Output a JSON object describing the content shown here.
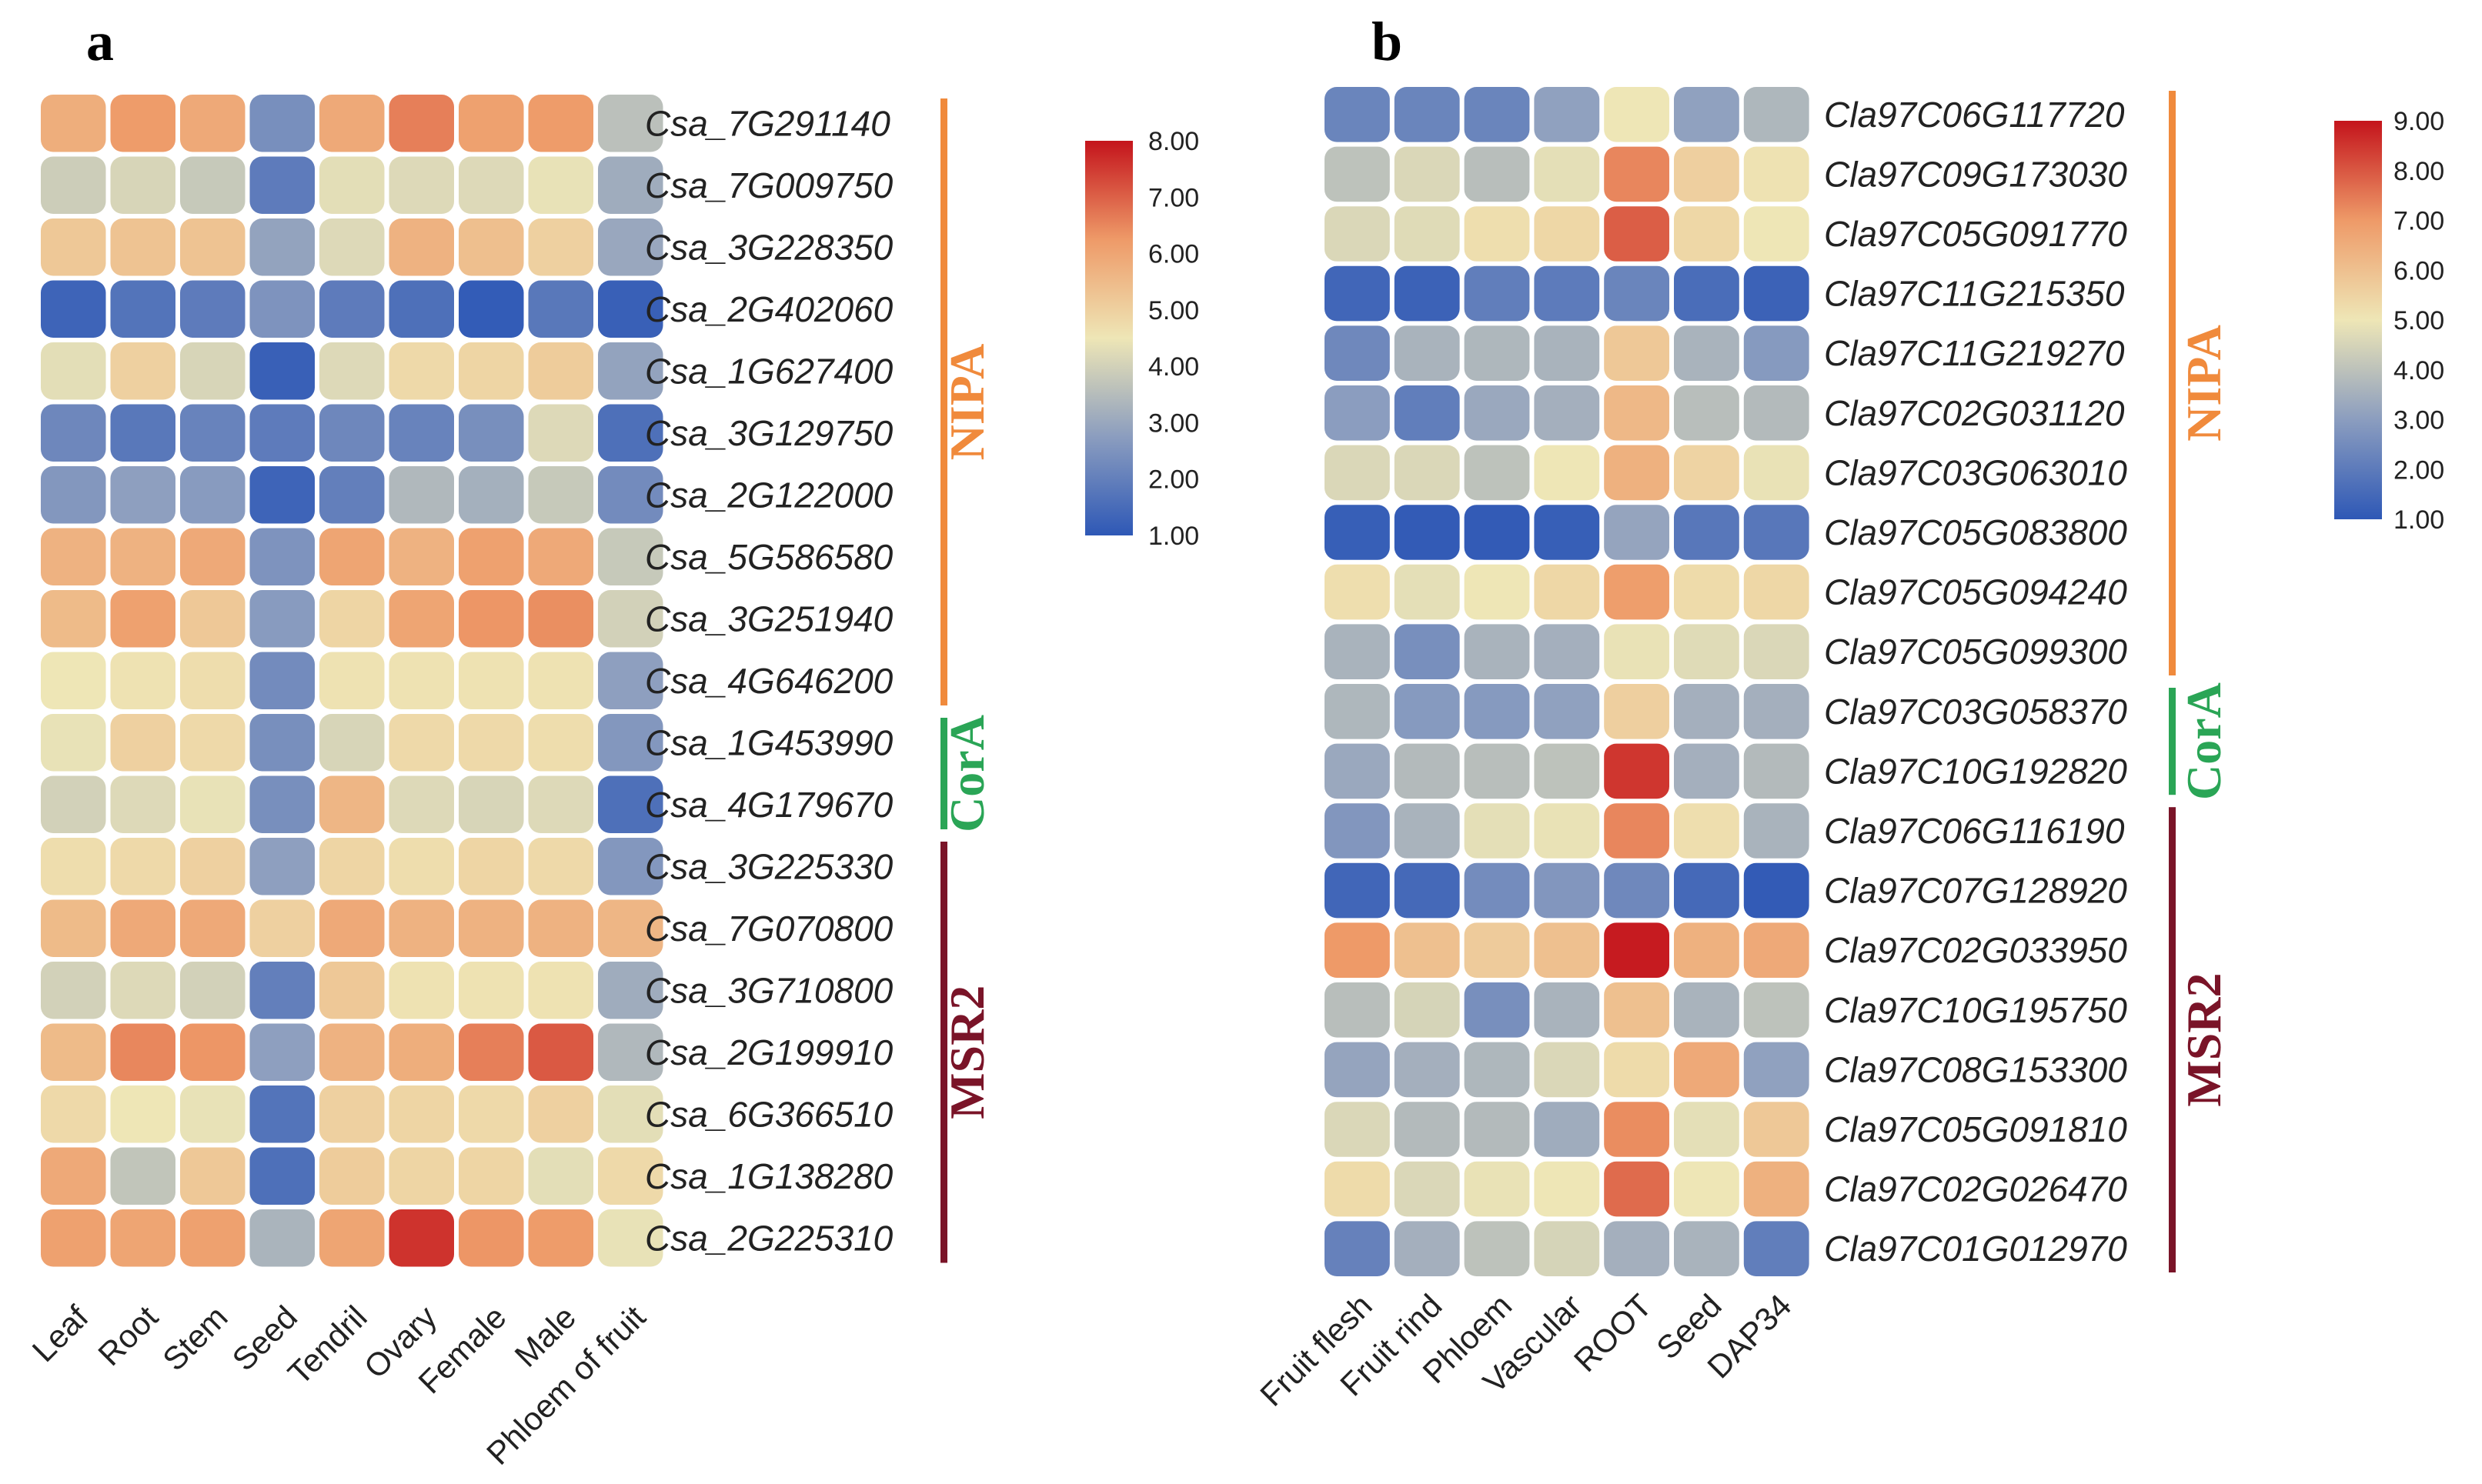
{
  "chart_data": [
    {
      "type": "heatmap",
      "panel": "a",
      "columns": [
        "Leaf",
        "Root",
        "Stem",
        "Seed",
        "Tendril",
        "Ovary",
        "Female",
        "Male",
        "Phloem of fruit"
      ],
      "rows": [
        "Csa_7G291140",
        "Csa_7G009750",
        "Csa_3G228350",
        "Csa_2G402060",
        "Csa_1G627400",
        "Csa_3G129750",
        "Csa_2G122000",
        "Csa_5G586580",
        "Csa_3G251940",
        "Csa_4G646200",
        "Csa_1G453990",
        "Csa_4G179670",
        "Csa_3G225330",
        "Csa_7G070800",
        "Csa_3G710800",
        "Csa_2G199910",
        "Csa_6G366510",
        "Csa_1G138280",
        "Csa_2G225310"
      ],
      "values": [
        [
          5.8,
          6.2,
          5.9,
          2.4,
          5.9,
          6.6,
          6.1,
          6.2,
          3.6
        ],
        [
          3.9,
          4.1,
          3.8,
          1.9,
          4.3,
          4.2,
          4.2,
          4.4,
          3.1
        ],
        [
          5.2,
          5.3,
          5.3,
          2.9,
          4.2,
          5.7,
          5.4,
          5.0,
          3.0
        ],
        [
          1.3,
          1.7,
          1.9,
          2.5,
          1.9,
          1.6,
          1.1,
          1.8,
          1.2
        ],
        [
          4.3,
          5.0,
          4.1,
          1.2,
          4.2,
          4.8,
          4.9,
          5.1,
          2.9
        ],
        [
          2.2,
          1.8,
          2.1,
          1.9,
          2.2,
          2.1,
          2.4,
          4.2,
          1.6
        ],
        [
          2.6,
          2.8,
          2.7,
          1.3,
          2.0,
          3.4,
          3.2,
          3.8,
          2.3
        ],
        [
          5.7,
          5.7,
          5.9,
          2.5,
          6.0,
          5.7,
          6.1,
          5.9,
          3.8
        ],
        [
          5.5,
          6.1,
          5.2,
          2.7,
          4.9,
          6.0,
          6.3,
          6.4,
          4.0
        ],
        [
          4.5,
          4.6,
          4.7,
          2.3,
          4.6,
          4.6,
          4.6,
          4.6,
          2.8
        ],
        [
          4.4,
          5.0,
          4.8,
          2.4,
          4.1,
          4.8,
          4.8,
          4.7,
          2.6
        ],
        [
          4.0,
          4.2,
          4.4,
          2.4,
          5.6,
          4.2,
          4.1,
          4.2,
          1.6
        ],
        [
          4.7,
          4.8,
          5.0,
          2.8,
          4.9,
          4.7,
          4.9,
          4.8,
          2.6
        ],
        [
          5.5,
          5.9,
          5.9,
          5.0,
          5.9,
          5.7,
          5.7,
          5.7,
          5.6
        ],
        [
          4.0,
          4.2,
          4.0,
          2.0,
          5.2,
          4.6,
          4.6,
          4.6,
          3.1
        ],
        [
          5.5,
          6.5,
          6.3,
          2.8,
          5.7,
          5.8,
          6.6,
          7.1,
          3.4
        ],
        [
          4.8,
          4.5,
          4.4,
          1.7,
          5.0,
          4.9,
          4.8,
          5.0,
          4.3
        ],
        [
          5.9,
          3.7,
          5.2,
          1.6,
          5.1,
          4.9,
          4.9,
          4.3,
          4.8
        ],
        [
          6.1,
          6.0,
          6.1,
          3.3,
          6.0,
          7.6,
          6.3,
          6.2,
          4.4
        ]
      ],
      "groups": [
        {
          "name": "NIPA",
          "color": "#f08a3c"
        },
        {
          "name": "CorA",
          "color": "#2aa556"
        },
        {
          "name": "MSR2",
          "color": "#7a1428"
        }
      ],
      "colorbar": {
        "min": 1.0,
        "max": 8.0,
        "ticks": [
          "8.00",
          "7.00",
          "6.00",
          "5.00",
          "4.00",
          "3.00",
          "2.00",
          "1.00"
        ]
      }
    },
    {
      "type": "heatmap",
      "panel": "b",
      "columns": [
        "Fruit flesh",
        "Fruit rind",
        "Phloem",
        "Vascular",
        "ROOT",
        "Seed",
        "DAP34"
      ],
      "rows": [
        "Cla97C06G117720",
        "Cla97C09G173030",
        "Cla97C05G091770",
        "Cla97C11G215350",
        "Cla97C11G219270",
        "Cla97C02G031120",
        "Cla97C03G063010",
        "Cla97C05G083800",
        "Cla97C05G094240",
        "Cla97C05G099300",
        "Cla97C03G058370",
        "Cla97C10G192820",
        "Cla97C06G116190",
        "Cla97C07G128920",
        "Cla97C02G033950",
        "Cla97C10G195750",
        "Cla97C08G153300",
        "Cla97C05G091810",
        "Cla97C02G026470",
        "Cla97C01G012970"
      ],
      "values": [
        [
          2.3,
          2.3,
          2.3,
          3.1,
          5.0,
          3.1,
          3.7
        ],
        [
          4.0,
          4.6,
          3.9,
          4.8,
          7.3,
          5.6,
          5.1
        ],
        [
          4.6,
          4.7,
          5.2,
          5.4,
          7.9,
          5.4,
          5.0
        ],
        [
          1.4,
          1.3,
          2.1,
          2.0,
          2.3,
          1.6,
          1.3
        ],
        [
          2.4,
          3.6,
          3.7,
          3.6,
          5.8,
          3.6,
          2.9
        ],
        [
          3.0,
          2.1,
          3.3,
          3.5,
          6.2,
          3.9,
          3.8
        ],
        [
          4.6,
          4.6,
          4.0,
          5.0,
          6.4,
          5.5,
          4.9
        ],
        [
          1.2,
          1.1,
          1.1,
          1.2,
          3.2,
          1.9,
          1.9
        ],
        [
          5.2,
          4.8,
          5.0,
          5.4,
          6.9,
          5.3,
          5.4
        ],
        [
          3.6,
          2.6,
          3.6,
          3.5,
          4.9,
          4.7,
          4.6
        ],
        [
          3.7,
          2.9,
          2.9,
          3.1,
          5.6,
          3.5,
          3.5
        ],
        [
          3.3,
          3.8,
          3.9,
          4.0,
          8.5,
          3.5,
          3.8
        ],
        [
          2.8,
          3.6,
          4.8,
          4.9,
          7.3,
          5.2,
          3.6
        ],
        [
          1.4,
          1.5,
          2.5,
          2.8,
          2.4,
          1.5,
          1.1
        ],
        [
          7.0,
          6.0,
          5.7,
          6.0,
          8.9,
          6.4,
          6.6
        ],
        [
          3.9,
          4.5,
          2.6,
          3.6,
          6.0,
          3.6,
          4.0
        ],
        [
          3.2,
          3.5,
          3.7,
          4.6,
          5.3,
          6.6,
          3.1
        ],
        [
          4.6,
          3.8,
          3.8,
          3.4,
          7.2,
          4.8,
          5.8
        ],
        [
          5.3,
          4.6,
          4.9,
          5.0,
          7.7,
          5.0,
          6.4
        ],
        [
          2.2,
          3.5,
          4.0,
          4.5,
          3.5,
          3.6,
          2.1
        ]
      ],
      "groups": [
        {
          "name": "NIPA",
          "color": "#f08a3c"
        },
        {
          "name": "CorA",
          "color": "#2aa556"
        },
        {
          "name": "MSR2",
          "color": "#7a1428"
        }
      ],
      "colorbar": {
        "min": 1.0,
        "max": 9.0,
        "ticks": [
          "9.00",
          "8.00",
          "7.00",
          "6.00",
          "5.00",
          "4.00",
          "3.00",
          "2.00",
          "1.00"
        ]
      }
    }
  ]
}
